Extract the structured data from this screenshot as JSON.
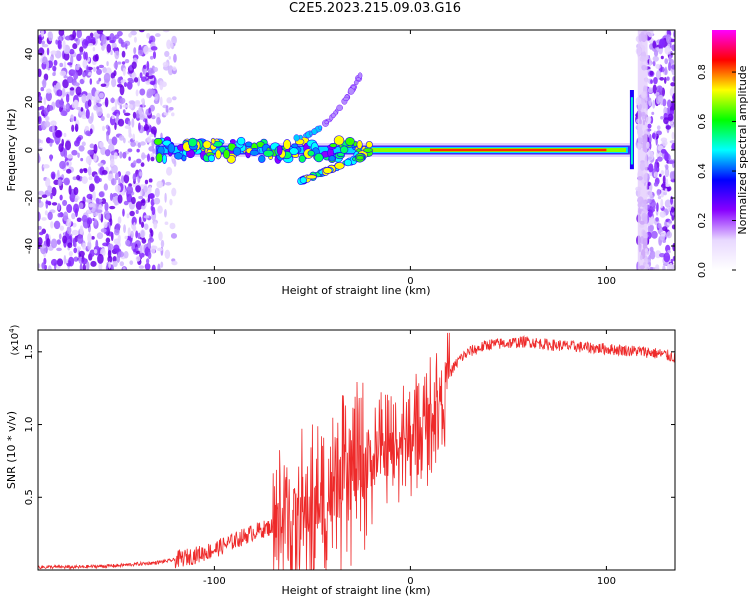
{
  "title": "C2E5.2023.215.09.03.G16",
  "chart_data": [
    {
      "type": "heatmap",
      "xlabel": "Height of straight line (km)",
      "ylabel": "Frequency (Hz)",
      "xlim": [
        -190,
        135
      ],
      "ylim": [
        -50,
        50
      ],
      "xticks": [
        -100,
        0,
        100
      ],
      "yticks": [
        -40,
        -20,
        0,
        20,
        40
      ],
      "colorbar": {
        "label": "Normalized spectral amplitude",
        "range": [
          0,
          0.97
        ],
        "ticks": [
          "0.0",
          "0.2",
          "0.4",
          "0.6",
          "0.8"
        ],
        "colormap": [
          "#ffffff",
          "#e8d8ff",
          "#8800ff",
          "#0000ff",
          "#00ffff",
          "#00ff00",
          "#ffff00",
          "#ff0000",
          "#ff00ff"
        ]
      },
      "features": [
        {
          "name": "carrier",
          "x_range": [
            -130,
            112
          ],
          "freq_hz": 0
        },
        {
          "name": "branch_up",
          "x_range": [
            -60,
            -25
          ],
          "freq_hz": [
            5,
            32
          ]
        },
        {
          "name": "branch_down",
          "x_range": [
            -56,
            -25
          ],
          "freq_hz": [
            -13,
            -3
          ]
        }
      ]
    },
    {
      "type": "line",
      "xlabel": "Height of straight line (km)",
      "ylabel": "SNR (10 * v/v)",
      "multiplier": "(x10^4)",
      "multiplier_base": "(x10",
      "multiplier_exp": "4",
      "xlim": [
        -190,
        135
      ],
      "ylim": [
        0,
        1.65
      ],
      "xticks": [
        -100,
        0,
        100
      ],
      "yticks": [
        0.5,
        1.0,
        1.5
      ],
      "ytick_labels": [
        "0.5",
        "1.0",
        "1.5"
      ],
      "color": "#ee2a2a",
      "series": [
        {
          "x": [
            -190,
            -170,
            -150,
            -140,
            -130,
            -120,
            -110,
            -100,
            -90,
            -80,
            -70,
            -60,
            -50,
            -40,
            -35,
            -30,
            -25,
            -20,
            -15,
            -10,
            -5,
            0,
            5,
            10,
            15,
            20,
            25,
            30,
            40,
            50,
            60,
            70,
            80,
            90,
            100,
            110,
            120,
            130,
            135
          ],
          "y": [
            0.02,
            0.02,
            0.03,
            0.04,
            0.05,
            0.07,
            0.1,
            0.14,
            0.2,
            0.26,
            0.3,
            0.35,
            0.4,
            0.5,
            0.58,
            0.62,
            0.7,
            0.75,
            0.78,
            0.82,
            0.88,
            0.9,
            0.95,
            1.05,
            1.2,
            1.35,
            1.45,
            1.5,
            1.55,
            1.56,
            1.57,
            1.55,
            1.54,
            1.53,
            1.52,
            1.51,
            1.5,
            1.48,
            1.46
          ]
        }
      ]
    }
  ]
}
